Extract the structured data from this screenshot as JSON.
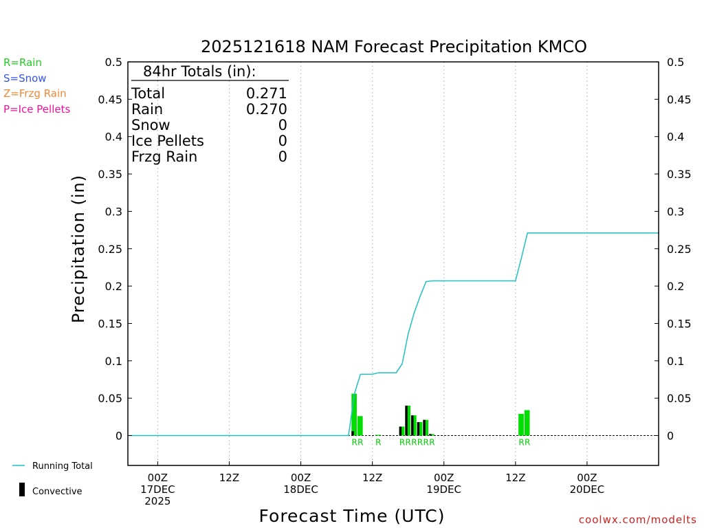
{
  "chart_data": {
    "type": "bar+line",
    "title": "2025121618 NAM Forecast Precipitation KMCO",
    "ylabel": "Precipitation (in)",
    "xlabel": "Forecast Time (UTC)",
    "ylim": [
      -0.04,
      0.5
    ],
    "yticks": [
      "0.5",
      "0.45",
      "0.4",
      "0.35",
      "0.3",
      "0.25",
      "0.2",
      "0.15",
      "0.1",
      "0.05",
      "0"
    ],
    "xlim_hours": [
      -5,
      84
    ],
    "xticks": [
      {
        "hour": 0,
        "line1": "00Z",
        "line2": "17DEC",
        "line3": "2025"
      },
      {
        "hour": 12,
        "line1": "12Z",
        "line2": "",
        "line3": ""
      },
      {
        "hour": 24,
        "line1": "00Z",
        "line2": "18DEC",
        "line3": ""
      },
      {
        "hour": 36,
        "line1": "12Z",
        "line2": "",
        "line3": ""
      },
      {
        "hour": 48,
        "line1": "00Z",
        "line2": "19DEC",
        "line3": ""
      },
      {
        "hour": 60,
        "line1": "12Z",
        "line2": "",
        "line3": ""
      },
      {
        "hour": 72,
        "line1": "00Z",
        "line2": "20DEC",
        "line3": ""
      }
    ],
    "running_total": {
      "name": "Running Total",
      "color": "#20c0c0",
      "hours": [
        -5,
        32,
        33,
        34,
        35,
        36,
        37,
        38,
        39,
        40,
        41,
        42,
        43,
        44,
        45,
        46,
        47,
        48,
        56,
        60,
        61,
        62,
        84
      ],
      "values": [
        0,
        0,
        0.056,
        0.082,
        0.082,
        0.082,
        0.084,
        0.084,
        0.084,
        0.084,
        0.096,
        0.136,
        0.164,
        0.186,
        0.206,
        0.207,
        0.207,
        0.207,
        0.207,
        0.207,
        0.238,
        0.271,
        0.271
      ]
    },
    "bars": [
      {
        "hour": 33,
        "total": 0.056,
        "convective": 0.006,
        "ptype": "R"
      },
      {
        "hour": 34,
        "total": 0.026,
        "convective": 0,
        "ptype": "R"
      },
      {
        "hour": 37,
        "total": 0.001,
        "convective": 0,
        "ptype": "R"
      },
      {
        "hour": 41,
        "total": 0.012,
        "convective": 0.012,
        "ptype": "R"
      },
      {
        "hour": 42,
        "total": 0.04,
        "convective": 0.04,
        "ptype": "R"
      },
      {
        "hour": 43,
        "total": 0.027,
        "convective": 0.027,
        "ptype": "R"
      },
      {
        "hour": 44,
        "total": 0.018,
        "convective": 0.018,
        "ptype": "R"
      },
      {
        "hour": 45,
        "total": 0.021,
        "convective": 0.021,
        "ptype": "R"
      },
      {
        "hour": 46,
        "total": 0.002,
        "convective": 0.002,
        "ptype": "R"
      },
      {
        "hour": 61,
        "total": 0.029,
        "convective": 0,
        "ptype": "R"
      },
      {
        "hour": 62,
        "total": 0.034,
        "convective": 0,
        "ptype": "R"
      }
    ],
    "ptype_label_hours": [
      33,
      34,
      37,
      41,
      42,
      43,
      44,
      45,
      46,
      61,
      62
    ]
  },
  "totals": {
    "header": "84hr Totals (in):",
    "rows": [
      {
        "label": "Total",
        "value": "0.271"
      },
      {
        "label": "Rain",
        "value": "0.270"
      },
      {
        "label": "Snow",
        "value": "0"
      },
      {
        "label": "Ice Pellets",
        "value": "0"
      },
      {
        "label": "Frzg Rain",
        "value": "0"
      }
    ]
  },
  "ptype_legend": [
    {
      "text": "R=Rain",
      "color": "#22cc22"
    },
    {
      "text": "S=Snow",
      "color": "#3355ee"
    },
    {
      "text": "Z=Frzg Rain",
      "color": "#ee8833"
    },
    {
      "text": "P=Ice Pellets",
      "color": "#ee1199"
    }
  ],
  "series_legend": {
    "running_total": "Running Total",
    "convective": "Convective"
  },
  "colors": {
    "rain": "#00dd00",
    "convective": "#000000",
    "line": "#20c0c0"
  },
  "credit": "coolwx.com/modelts"
}
